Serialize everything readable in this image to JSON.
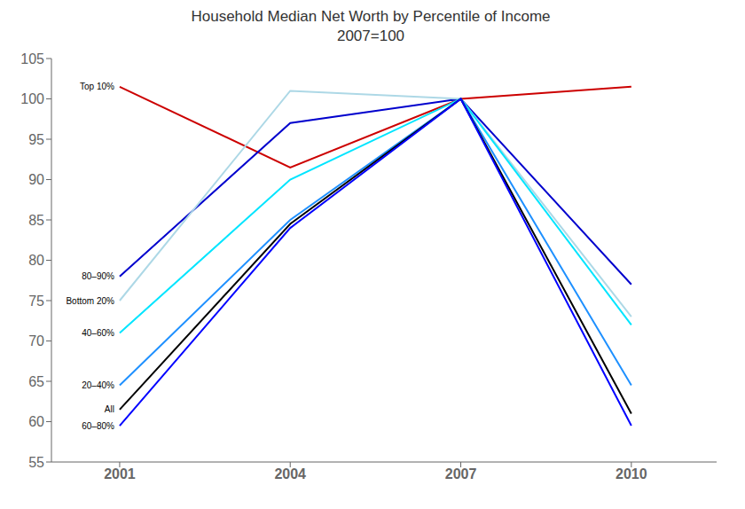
{
  "chart_data": {
    "type": "line",
    "title": "Household Median Net Worth by Percentile of Income",
    "subtitle": "2007=100",
    "x": [
      2001,
      2004,
      2007,
      2010
    ],
    "series": [
      {
        "name": "Top 10%",
        "color": "#cc0000",
        "values": [
          101.5,
          91.5,
          100.0,
          101.5
        ]
      },
      {
        "name": "80–90%",
        "color": "#0000cd",
        "values": [
          78.0,
          97.0,
          100.0,
          77.0
        ]
      },
      {
        "name": "Bottom 20%",
        "color": "#add8e6",
        "values": [
          75.0,
          101.0,
          100.0,
          73.0
        ]
      },
      {
        "name": "40–60%",
        "color": "#00e5ff",
        "values": [
          71.0,
          90.0,
          100.0,
          72.0
        ]
      },
      {
        "name": "20–40%",
        "color": "#1e90ff",
        "values": [
          64.5,
          85.0,
          100.0,
          64.5
        ]
      },
      {
        "name": "All",
        "color": "#000000",
        "values": [
          61.5,
          84.5,
          100.0,
          61.0
        ]
      },
      {
        "name": "60–80%",
        "color": "#0000ff",
        "values": [
          59.5,
          84.0,
          100.0,
          59.5
        ]
      }
    ],
    "xlim": [
      1999.8,
      2011.5
    ],
    "xticks": [
      2001,
      2004,
      2007,
      2010
    ],
    "ylim": [
      55,
      105
    ],
    "yticks": [
      55,
      60,
      65,
      70,
      75,
      80,
      85,
      90,
      95,
      100,
      105
    ],
    "grid": false
  }
}
